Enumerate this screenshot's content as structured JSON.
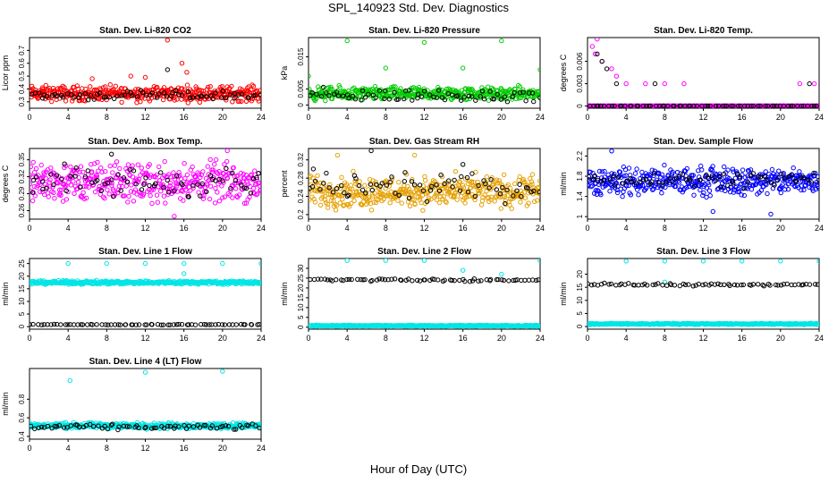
{
  "figure": {
    "title": "SPL_140923  Std. Dev. Diagnostics",
    "xlabel": "Hour of Day (UTC)"
  },
  "colors": {
    "red": "#ff0000",
    "black": "#000000",
    "green": "#00cc00",
    "magenta": "#ff00ff",
    "orange": "#e6a000",
    "blue": "#0000ff",
    "cyan": "#00e5e5"
  },
  "chart_data": [
    {
      "type": "scatter",
      "title": "Stan. Dev. Li-820 CO2",
      "ylabel": "Licor ppm",
      "xlim": [
        0,
        24
      ],
      "ylim": [
        0.25,
        0.8
      ],
      "x_ticks": [
        0,
        4,
        8,
        12,
        16,
        20,
        24
      ],
      "y_ticks": [
        0.3,
        0.4,
        0.5,
        0.6,
        0.7
      ],
      "series": [
        {
          "color": "red",
          "band": [
            0.28,
            0.45
          ],
          "outliers": [
            {
              "x": 14.3,
              "y": 0.78
            },
            {
              "x": 15.8,
              "y": 0.6
            },
            {
              "x": 10.5,
              "y": 0.5
            },
            {
              "x": 6.5,
              "y": 0.48
            },
            {
              "x": 12.0,
              "y": 0.49
            },
            {
              "x": 16.3,
              "y": 0.53
            }
          ]
        },
        {
          "color": "black",
          "band": [
            0.3,
            0.4
          ],
          "outliers": [
            {
              "x": 14.3,
              "y": 0.55
            }
          ]
        }
      ]
    },
    {
      "type": "scatter",
      "title": "Stan. Dev. Li-820 Pressure",
      "ylabel": "kPa",
      "xlim": [
        0,
        24
      ],
      "ylim": [
        -0.001,
        0.021
      ],
      "x_ticks": [
        0,
        4,
        8,
        12,
        16,
        20,
        24
      ],
      "y_ticks": [
        0.0,
        0.005,
        0.015
      ],
      "series": [
        {
          "color": "green",
          "band": [
            0.0005,
            0.0065
          ],
          "outliers": [
            {
              "x": 4,
              "y": 0.02
            },
            {
              "x": 12,
              "y": 0.0195
            },
            {
              "x": 20,
              "y": 0.02
            },
            {
              "x": 8,
              "y": 0.0115
            },
            {
              "x": 16,
              "y": 0.0115
            },
            {
              "x": 24,
              "y": 0.011
            },
            {
              "x": 0,
              "y": 0.009
            }
          ]
        },
        {
          "color": "black",
          "band": [
            0.0,
            0.006
          ],
          "outliers": []
        }
      ]
    },
    {
      "type": "scatter",
      "title": "Stan. Dev. Li-820 Temp.",
      "ylabel": "degrees C",
      "xlim": [
        0,
        24
      ],
      "ylim": [
        -0.0003,
        0.0092
      ],
      "x_ticks": [
        0,
        4,
        8,
        12,
        16,
        20,
        24
      ],
      "y_ticks": [
        0.0,
        0.003,
        0.006
      ],
      "series": [
        {
          "color": "magenta",
          "band": [
            0.0,
            0.0
          ],
          "outliers": [
            {
              "x": 1.0,
              "y": 0.009
            },
            {
              "x": 0.5,
              "y": 0.008
            },
            {
              "x": 0.8,
              "y": 0.007
            },
            {
              "x": 1.5,
              "y": 0.006
            },
            {
              "x": 2.5,
              "y": 0.005
            },
            {
              "x": 3.0,
              "y": 0.004
            },
            {
              "x": 4.0,
              "y": 0.003
            },
            {
              "x": 6.0,
              "y": 0.003
            },
            {
              "x": 8.0,
              "y": 0.003
            },
            {
              "x": 10.0,
              "y": 0.003
            },
            {
              "x": 22.0,
              "y": 0.003
            },
            {
              "x": 23.5,
              "y": 0.003
            }
          ]
        },
        {
          "color": "black",
          "band": [
            0.0,
            0.0
          ],
          "outliers": [
            {
              "x": 1.0,
              "y": 0.007
            },
            {
              "x": 1.5,
              "y": 0.006
            },
            {
              "x": 2.0,
              "y": 0.005
            },
            {
              "x": 3.0,
              "y": 0.003
            },
            {
              "x": 7.0,
              "y": 0.003
            },
            {
              "x": 23.0,
              "y": 0.003
            }
          ]
        }
      ]
    },
    {
      "type": "scatter",
      "title": "Stan. Dev. Amb. Box Temp.",
      "ylabel": "degrees C",
      "xlim": [
        0,
        24
      ],
      "ylim": [
        0.245,
        0.37
      ],
      "x_ticks": [
        0,
        4,
        8,
        12,
        16,
        20,
        24
      ],
      "y_ticks": [
        0.26,
        0.29,
        0.32,
        0.35
      ],
      "series": [
        {
          "color": "magenta",
          "band": [
            0.26,
            0.36
          ],
          "outliers": [
            {
              "x": 15.0,
              "y": 0.25
            },
            {
              "x": 20.5,
              "y": 0.366
            }
          ]
        },
        {
          "color": "black",
          "band": [
            0.27,
            0.35
          ],
          "outliers": [
            {
              "x": 8.5,
              "y": 0.36
            }
          ]
        }
      ]
    },
    {
      "type": "scatter",
      "title": "Stan. Dev. Gas Stream RH",
      "ylabel": "percent",
      "xlim": [
        0,
        24
      ],
      "ylim": [
        0.19,
        0.345
      ],
      "x_ticks": [
        0,
        4,
        8,
        12,
        16,
        20,
        24
      ],
      "y_ticks": [
        0.2,
        0.24,
        0.28,
        0.32
      ],
      "series": [
        {
          "color": "orange",
          "band": [
            0.2,
            0.3
          ],
          "outliers": [
            {
              "x": 11.0,
              "y": 0.33
            },
            {
              "x": 3.0,
              "y": 0.33
            }
          ]
        },
        {
          "color": "black",
          "band": [
            0.22,
            0.3
          ],
          "outliers": [
            {
              "x": 6.5,
              "y": 0.34
            },
            {
              "x": 16.0,
              "y": 0.31
            },
            {
              "x": 0.5,
              "y": 0.3
            }
          ]
        }
      ]
    },
    {
      "type": "scatter",
      "title": "Stan. Dev. Sample Flow",
      "ylabel": "ml/min",
      "xlim": [
        0,
        24
      ],
      "ylim": [
        0.95,
        2.35
      ],
      "x_ticks": [
        0,
        4,
        8,
        12,
        16,
        20,
        24
      ],
      "y_ticks": [
        1.0,
        1.4,
        1.8,
        2.2
      ],
      "series": [
        {
          "color": "blue",
          "band": [
            1.3,
            2.1
          ],
          "outliers": [
            {
              "x": 2.5,
              "y": 2.3
            },
            {
              "x": 19.0,
              "y": 1.05
            },
            {
              "x": 13.0,
              "y": 1.1
            }
          ]
        },
        {
          "color": "black",
          "band": [
            1.55,
            1.95
          ],
          "outliers": []
        }
      ]
    },
    {
      "type": "scatter",
      "title": "Stan. Dev. Line 1 Flow",
      "ylabel": "ml/min",
      "xlim": [
        0,
        24
      ],
      "ylim": [
        -1,
        27
      ],
      "x_ticks": [
        0,
        4,
        8,
        12,
        16,
        20,
        24
      ],
      "y_ticks": [
        0,
        5,
        10,
        15,
        20,
        25
      ],
      "series": [
        {
          "color": "cyan",
          "band": [
            16.5,
            18.5
          ],
          "outliers": [
            {
              "x": 4,
              "y": 25
            },
            {
              "x": 8,
              "y": 25
            },
            {
              "x": 12,
              "y": 25
            },
            {
              "x": 16,
              "y": 25
            },
            {
              "x": 20,
              "y": 25
            },
            {
              "x": 24,
              "y": 25
            },
            {
              "x": 16,
              "y": 21
            }
          ]
        },
        {
          "color": "black",
          "band": [
            0.6,
            1.0
          ],
          "outliers": []
        }
      ]
    },
    {
      "type": "scatter",
      "title": "Stan. Dev. Line 2 Flow",
      "ylabel": "ml/min",
      "xlim": [
        0,
        24
      ],
      "ylim": [
        -1,
        35
      ],
      "x_ticks": [
        0,
        4,
        8,
        12,
        16,
        20,
        24
      ],
      "y_ticks": [
        0,
        5,
        10,
        15,
        20,
        25,
        30
      ],
      "series": [
        {
          "color": "cyan",
          "band": [
            0.3,
            1.2
          ],
          "outliers": [
            {
              "x": 4,
              "y": 34
            },
            {
              "x": 8,
              "y": 34
            },
            {
              "x": 12,
              "y": 34
            },
            {
              "x": 16,
              "y": 29
            },
            {
              "x": 20,
              "y": 27
            },
            {
              "x": 24,
              "y": 34
            }
          ]
        },
        {
          "color": "black",
          "band": [
            23.0,
            25.0
          ],
          "outliers": []
        }
      ]
    },
    {
      "type": "scatter",
      "title": "Stan. Dev. Line 3 Flow",
      "ylabel": "ml/min",
      "xlim": [
        0,
        24
      ],
      "ylim": [
        -1,
        26
      ],
      "x_ticks": [
        0,
        4,
        8,
        12,
        16,
        20,
        24
      ],
      "y_ticks": [
        0,
        5,
        10,
        15,
        20
      ],
      "series": [
        {
          "color": "cyan",
          "band": [
            0.6,
            1.4
          ],
          "outliers": [
            {
              "x": 4,
              "y": 25
            },
            {
              "x": 8,
              "y": 25
            },
            {
              "x": 12,
              "y": 25
            },
            {
              "x": 16,
              "y": 25
            },
            {
              "x": 20,
              "y": 25
            },
            {
              "x": 24,
              "y": 25
            },
            {
              "x": 8,
              "y": 17
            }
          ]
        },
        {
          "color": "black",
          "band": [
            15.3,
            16.8
          ],
          "outliers": []
        }
      ]
    },
    {
      "type": "scatter",
      "title": "Stan. Dev. Line 4 (LT) Flow",
      "ylabel": "ml/min",
      "xlim": [
        0,
        24
      ],
      "ylim": [
        0.37,
        1.13
      ],
      "x_ticks": [
        0,
        4,
        8,
        12,
        16,
        20,
        24
      ],
      "y_ticks": [
        0.4,
        0.6,
        0.8
      ],
      "series": [
        {
          "color": "cyan",
          "band": [
            0.47,
            0.56
          ],
          "outliers": [
            {
              "x": 4.2,
              "y": 1.0
            },
            {
              "x": 12.0,
              "y": 1.09
            },
            {
              "x": 20.0,
              "y": 1.1
            }
          ]
        },
        {
          "color": "black",
          "band": [
            0.46,
            0.54
          ],
          "outliers": []
        }
      ]
    }
  ]
}
